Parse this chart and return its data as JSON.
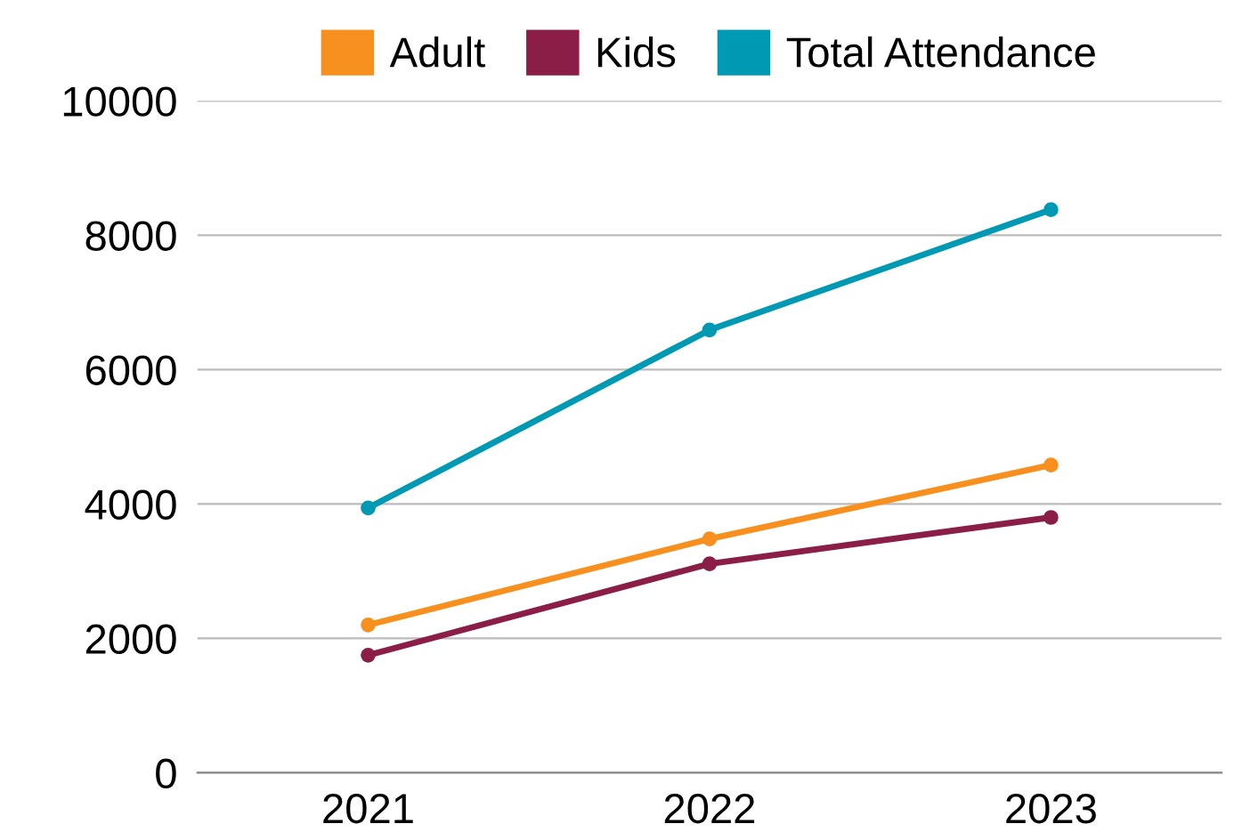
{
  "chart_data": {
    "type": "line",
    "categories": [
      "2021",
      "2022",
      "2023"
    ],
    "series": [
      {
        "name": "Adult",
        "color": "#f7901e",
        "values": [
          2200,
          3480,
          4580
        ]
      },
      {
        "name": "Kids",
        "color": "#8b1e47",
        "values": [
          1750,
          3110,
          3800
        ]
      },
      {
        "name": "Total Attendance",
        "color": "#0099b4",
        "values": [
          3940,
          6590,
          8380
        ]
      }
    ],
    "ylim": [
      0,
      10000
    ],
    "yticks": [
      0,
      2000,
      4000,
      6000,
      8000,
      10000
    ],
    "grid": "y",
    "legend": "top",
    "marker": "circle",
    "line_style": "solid"
  }
}
